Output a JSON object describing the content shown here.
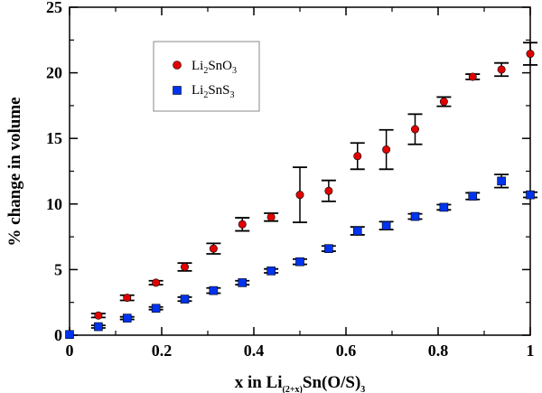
{
  "chart_data": {
    "type": "scatter",
    "title": "",
    "xlabel": {
      "base": "x in Li",
      "sub": "(2+x)",
      "rest": "Sn(O/S)",
      "sub2": "3"
    },
    "ylabel": "% change in volume",
    "xlim": [
      0,
      1
    ],
    "ylim": [
      0,
      25
    ],
    "x_ticks": [
      0,
      0.2,
      0.4,
      0.6,
      0.8,
      1
    ],
    "x_tick_labels": [
      "0",
      "0.2",
      "0.4",
      "0.6",
      "0.8",
      "1"
    ],
    "y_ticks": [
      0,
      5,
      10,
      15,
      20,
      25
    ],
    "y_tick_labels": [
      "0",
      "5",
      "10",
      "15",
      "20",
      "25"
    ],
    "grid": false,
    "legend_position": "top-left",
    "series": [
      {
        "name": "Li2SnO3",
        "legend": {
          "a": "Li",
          "b": "2",
          "c": "SnO",
          "d": "3"
        },
        "marker": "circle",
        "color": "#e00000",
        "x": [
          0.0625,
          0.125,
          0.1875,
          0.25,
          0.3125,
          0.375,
          0.4375,
          0.5,
          0.5625,
          0.625,
          0.6875,
          0.75,
          0.8125,
          0.875,
          0.9375,
          1.0
        ],
        "y": [
          1.5,
          2.85,
          4.0,
          5.2,
          6.6,
          8.45,
          9.0,
          10.7,
          11.0,
          13.65,
          14.15,
          15.7,
          17.8,
          19.7,
          20.25,
          21.45
        ],
        "err": [
          0.15,
          0.2,
          0.15,
          0.3,
          0.4,
          0.5,
          0.3,
          2.1,
          0.8,
          1.0,
          1.5,
          1.15,
          0.35,
          0.2,
          0.5,
          0.85
        ]
      },
      {
        "name": "Li2SnS3",
        "legend": {
          "a": "Li",
          "b": "2",
          "c": "SnS",
          "d": "3"
        },
        "marker": "square",
        "color": "#0033ee",
        "x": [
          0.0,
          0.0625,
          0.125,
          0.1875,
          0.25,
          0.3125,
          0.375,
          0.4375,
          0.5,
          0.5625,
          0.625,
          0.6875,
          0.75,
          0.8125,
          0.875,
          0.9375,
          1.0
        ],
        "y": [
          0.05,
          0.65,
          1.3,
          2.05,
          2.75,
          3.4,
          4.0,
          4.9,
          5.6,
          6.6,
          7.95,
          8.35,
          9.05,
          9.75,
          10.6,
          11.75,
          10.7
        ],
        "err": [
          0.0,
          0.1,
          0.1,
          0.1,
          0.15,
          0.2,
          0.15,
          0.15,
          0.2,
          0.2,
          0.3,
          0.3,
          0.2,
          0.2,
          0.25,
          0.5,
          0.2
        ]
      }
    ]
  }
}
